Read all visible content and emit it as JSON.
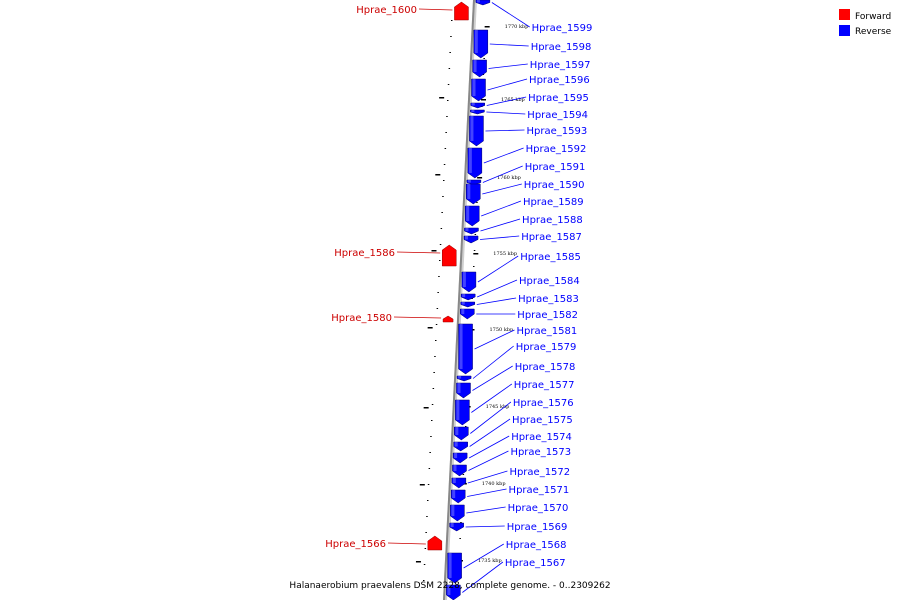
{
  "caption": "Halanaerobium praevalens DSM 2228, complete genome. - 0..2309262",
  "legend": [
    {
      "label": "Forward",
      "color": "#ff0000"
    },
    {
      "label": "Reverse",
      "color": "#0000ff"
    }
  ],
  "colors": {
    "forward": "#ff0000",
    "reverse": "#0000ff",
    "backbone": "#888888",
    "forward_label": "#cc0000"
  },
  "ticks": [
    "1770 kbp",
    "1765 kbp",
    "1760 kbp",
    "1755 kbp",
    "1750 kbp",
    "1745 kbp",
    "1740 kbp",
    "1735 kbp"
  ],
  "forward_genes": [
    {
      "label": "Hprae_1600"
    },
    {
      "label": "Hprae_1586"
    },
    {
      "label": "Hprae_1580"
    },
    {
      "label": "Hprae_1566"
    }
  ],
  "reverse_genes": [
    {
      "label": "Hprae_1599"
    },
    {
      "label": "Hprae_1598"
    },
    {
      "label": "Hprae_1597"
    },
    {
      "label": "Hprae_1596"
    },
    {
      "label": "Hprae_1595"
    },
    {
      "label": "Hprae_1594"
    },
    {
      "label": "Hprae_1593"
    },
    {
      "label": "Hprae_1592"
    },
    {
      "label": "Hprae_1591"
    },
    {
      "label": "Hprae_1590"
    },
    {
      "label": "Hprae_1589"
    },
    {
      "label": "Hprae_1588"
    },
    {
      "label": "Hprae_1587"
    },
    {
      "label": "Hprae_1585"
    },
    {
      "label": "Hprae_1584"
    },
    {
      "label": "Hprae_1583"
    },
    {
      "label": "Hprae_1582"
    },
    {
      "label": "Hprae_1581"
    },
    {
      "label": "Hprae_1579"
    },
    {
      "label": "Hprae_1578"
    },
    {
      "label": "Hprae_1577"
    },
    {
      "label": "Hprae_1576"
    },
    {
      "label": "Hprae_1575"
    },
    {
      "label": "Hprae_1574"
    },
    {
      "label": "Hprae_1573"
    },
    {
      "label": "Hprae_1572"
    },
    {
      "label": "Hprae_1571"
    },
    {
      "label": "Hprae_1570"
    },
    {
      "label": "Hprae_1569"
    },
    {
      "label": "Hprae_1568"
    },
    {
      "label": "Hprae_1567"
    }
  ]
}
